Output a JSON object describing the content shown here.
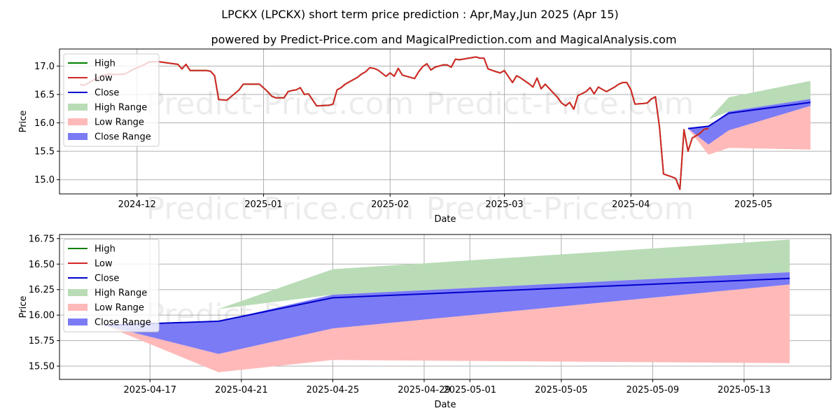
{
  "titles": {
    "line1": "LPCKX (LPCKX) short term price prediction : Apr,May,Jun 2025 (Apr 15)",
    "line2": "powered by Predict-Price.com and MagicalPrediction.com and MagicalAnalysis.com"
  },
  "watermark": "Predict-Price.com",
  "colors": {
    "high": "#008000",
    "low": "#d62728",
    "close": "#0000cd",
    "high_range": "#b9dcb6",
    "low_range": "#ffb9b9",
    "close_range": "#7b7bf5"
  },
  "chart_data": [
    {
      "type": "line",
      "xlabel": "Date",
      "ylabel": "Price",
      "ylim": [
        14.75,
        17.3
      ],
      "yticks": [
        "15.0",
        "15.5",
        "16.0",
        "16.5",
        "17.0"
      ],
      "xticks": [
        "2024-12",
        "2025-01",
        "2025-02",
        "2025-03",
        "2025-04",
        "2025-05"
      ],
      "legend": [
        "High",
        "Low",
        "Close",
        "High Range",
        "Low Range",
        "Close Range"
      ],
      "legend_position": "upper-left",
      "grid": true,
      "history": [
        [
          "2024-11-17",
          16.68
        ],
        [
          "2024-11-18",
          16.66
        ],
        [
          "2024-11-20",
          16.74
        ],
        [
          "2024-11-22",
          16.82
        ],
        [
          "2024-11-24",
          16.86
        ],
        [
          "2024-11-26",
          16.85
        ],
        [
          "2024-11-28",
          16.86
        ],
        [
          "2024-11-30",
          16.94
        ],
        [
          "2024-12-02",
          17.0
        ],
        [
          "2024-12-04",
          17.07
        ],
        [
          "2024-12-06",
          17.08
        ],
        [
          "2024-12-10",
          17.04
        ],
        [
          "2024-12-11",
          17.03
        ],
        [
          "2024-12-12",
          16.95
        ],
        [
          "2024-12-13",
          17.03
        ],
        [
          "2024-12-14",
          16.92
        ],
        [
          "2024-12-18",
          16.92
        ],
        [
          "2024-12-19",
          16.91
        ],
        [
          "2024-12-20",
          16.83
        ],
        [
          "2024-12-21",
          16.41
        ],
        [
          "2024-12-23",
          16.4
        ],
        [
          "2024-12-26",
          16.58
        ],
        [
          "2024-12-27",
          16.68
        ],
        [
          "2024-12-31",
          16.68
        ],
        [
          "2025-01-02",
          16.55
        ],
        [
          "2025-01-03",
          16.47
        ],
        [
          "2025-01-04",
          16.44
        ],
        [
          "2025-01-06",
          16.44
        ],
        [
          "2025-01-07",
          16.55
        ],
        [
          "2025-01-08",
          16.57
        ],
        [
          "2025-01-09",
          16.58
        ],
        [
          "2025-01-10",
          16.62
        ],
        [
          "2025-01-11",
          16.5
        ],
        [
          "2025-01-12",
          16.51
        ],
        [
          "2025-01-14",
          16.3
        ],
        [
          "2025-01-17",
          16.31
        ],
        [
          "2025-01-18",
          16.33
        ],
        [
          "2025-01-19",
          16.58
        ],
        [
          "2025-01-20",
          16.62
        ],
        [
          "2025-01-21",
          16.68
        ],
        [
          "2025-01-23",
          16.76
        ],
        [
          "2025-01-24",
          16.8
        ],
        [
          "2025-01-25",
          16.86
        ],
        [
          "2025-01-26",
          16.9
        ],
        [
          "2025-01-27",
          16.97
        ],
        [
          "2025-01-28",
          16.96
        ],
        [
          "2025-01-29",
          16.93
        ],
        [
          "2025-01-31",
          16.82
        ],
        [
          "2025-02-01",
          16.88
        ],
        [
          "2025-02-02",
          16.82
        ],
        [
          "2025-02-03",
          16.96
        ],
        [
          "2025-02-04",
          16.84
        ],
        [
          "2025-02-07",
          16.78
        ],
        [
          "2025-02-08",
          16.9
        ],
        [
          "2025-02-09",
          16.99
        ],
        [
          "2025-02-10",
          17.04
        ],
        [
          "2025-02-11",
          16.93
        ],
        [
          "2025-02-12",
          16.98
        ],
        [
          "2025-02-14",
          17.02
        ],
        [
          "2025-02-15",
          17.02
        ],
        [
          "2025-02-16",
          16.98
        ],
        [
          "2025-02-17",
          17.12
        ],
        [
          "2025-02-18",
          17.11
        ],
        [
          "2025-02-22",
          17.16
        ],
        [
          "2025-02-23",
          17.14
        ],
        [
          "2025-02-24",
          17.14
        ],
        [
          "2025-02-25",
          16.95
        ],
        [
          "2025-02-27",
          16.9
        ],
        [
          "2025-02-28",
          16.88
        ],
        [
          "2025-03-01",
          16.92
        ],
        [
          "2025-03-03",
          16.71
        ],
        [
          "2025-03-04",
          16.83
        ],
        [
          "2025-03-05",
          16.79
        ],
        [
          "2025-03-07",
          16.69
        ],
        [
          "2025-03-08",
          16.63
        ],
        [
          "2025-03-09",
          16.79
        ],
        [
          "2025-03-10",
          16.6
        ],
        [
          "2025-03-11",
          16.68
        ],
        [
          "2025-03-14",
          16.45
        ],
        [
          "2025-03-15",
          16.35
        ],
        [
          "2025-03-16",
          16.3
        ],
        [
          "2025-03-17",
          16.36
        ],
        [
          "2025-03-18",
          16.24
        ],
        [
          "2025-03-19",
          16.48
        ],
        [
          "2025-03-21",
          16.55
        ],
        [
          "2025-03-22",
          16.62
        ],
        [
          "2025-03-23",
          16.51
        ],
        [
          "2025-03-24",
          16.63
        ],
        [
          "2025-03-26",
          16.55
        ],
        [
          "2025-03-28",
          16.63
        ],
        [
          "2025-03-29",
          16.68
        ],
        [
          "2025-03-30",
          16.71
        ],
        [
          "2025-03-31",
          16.71
        ],
        [
          "2025-04-01",
          16.58
        ],
        [
          "2025-04-02",
          16.33
        ],
        [
          "2025-04-04",
          16.34
        ],
        [
          "2025-04-05",
          16.35
        ],
        [
          "2025-04-06",
          16.42
        ],
        [
          "2025-04-07",
          16.46
        ],
        [
          "2025-04-08",
          15.93
        ],
        [
          "2025-04-09",
          15.1
        ],
        [
          "2025-04-11",
          15.05
        ],
        [
          "2025-04-12",
          15.02
        ],
        [
          "2025-04-13",
          14.83
        ],
        [
          "2025-04-14",
          15.88
        ],
        [
          "2025-04-15",
          15.5
        ],
        [
          "2025-04-16",
          15.73
        ],
        [
          "2025-04-18",
          15.82
        ],
        [
          "2025-04-19",
          15.89
        ],
        [
          "2025-04-20",
          15.9
        ]
      ]
    },
    {
      "type": "area",
      "xlabel": "Date",
      "ylabel": "Price",
      "ylim": [
        15.37,
        16.79
      ],
      "yticks": [
        "15.50",
        "15.75",
        "16.00",
        "16.25",
        "16.50",
        "16.75"
      ],
      "xticks": [
        "2025-04-17",
        "2025-04-21",
        "2025-04-25",
        "2025-04-29",
        "2025-05-01",
        "2025-05-05",
        "2025-05-09",
        "2025-05-13"
      ],
      "legend": [
        "High",
        "Low",
        "Close",
        "High Range",
        "Low Range",
        "Close Range"
      ],
      "legend_position": "upper-left",
      "grid": true,
      "forecast": {
        "dates": [
          "2025-04-15",
          "2025-04-20",
          "2025-04-25",
          "2025-05-15"
        ],
        "close": [
          15.9,
          15.94,
          16.17,
          16.36
        ],
        "high_range_upper": [
          15.9,
          16.06,
          16.45,
          16.74
        ],
        "high_range_lower": [
          15.9,
          16.06,
          16.2,
          16.42
        ],
        "low_range_upper": [
          15.9,
          15.62,
          15.87,
          16.3
        ],
        "low_range_lower": [
          15.9,
          15.44,
          15.56,
          15.53
        ],
        "close_range_upper": [
          15.9,
          15.94,
          16.2,
          16.42
        ],
        "close_range_lower": [
          15.9,
          15.62,
          15.87,
          16.3
        ]
      }
    }
  ]
}
